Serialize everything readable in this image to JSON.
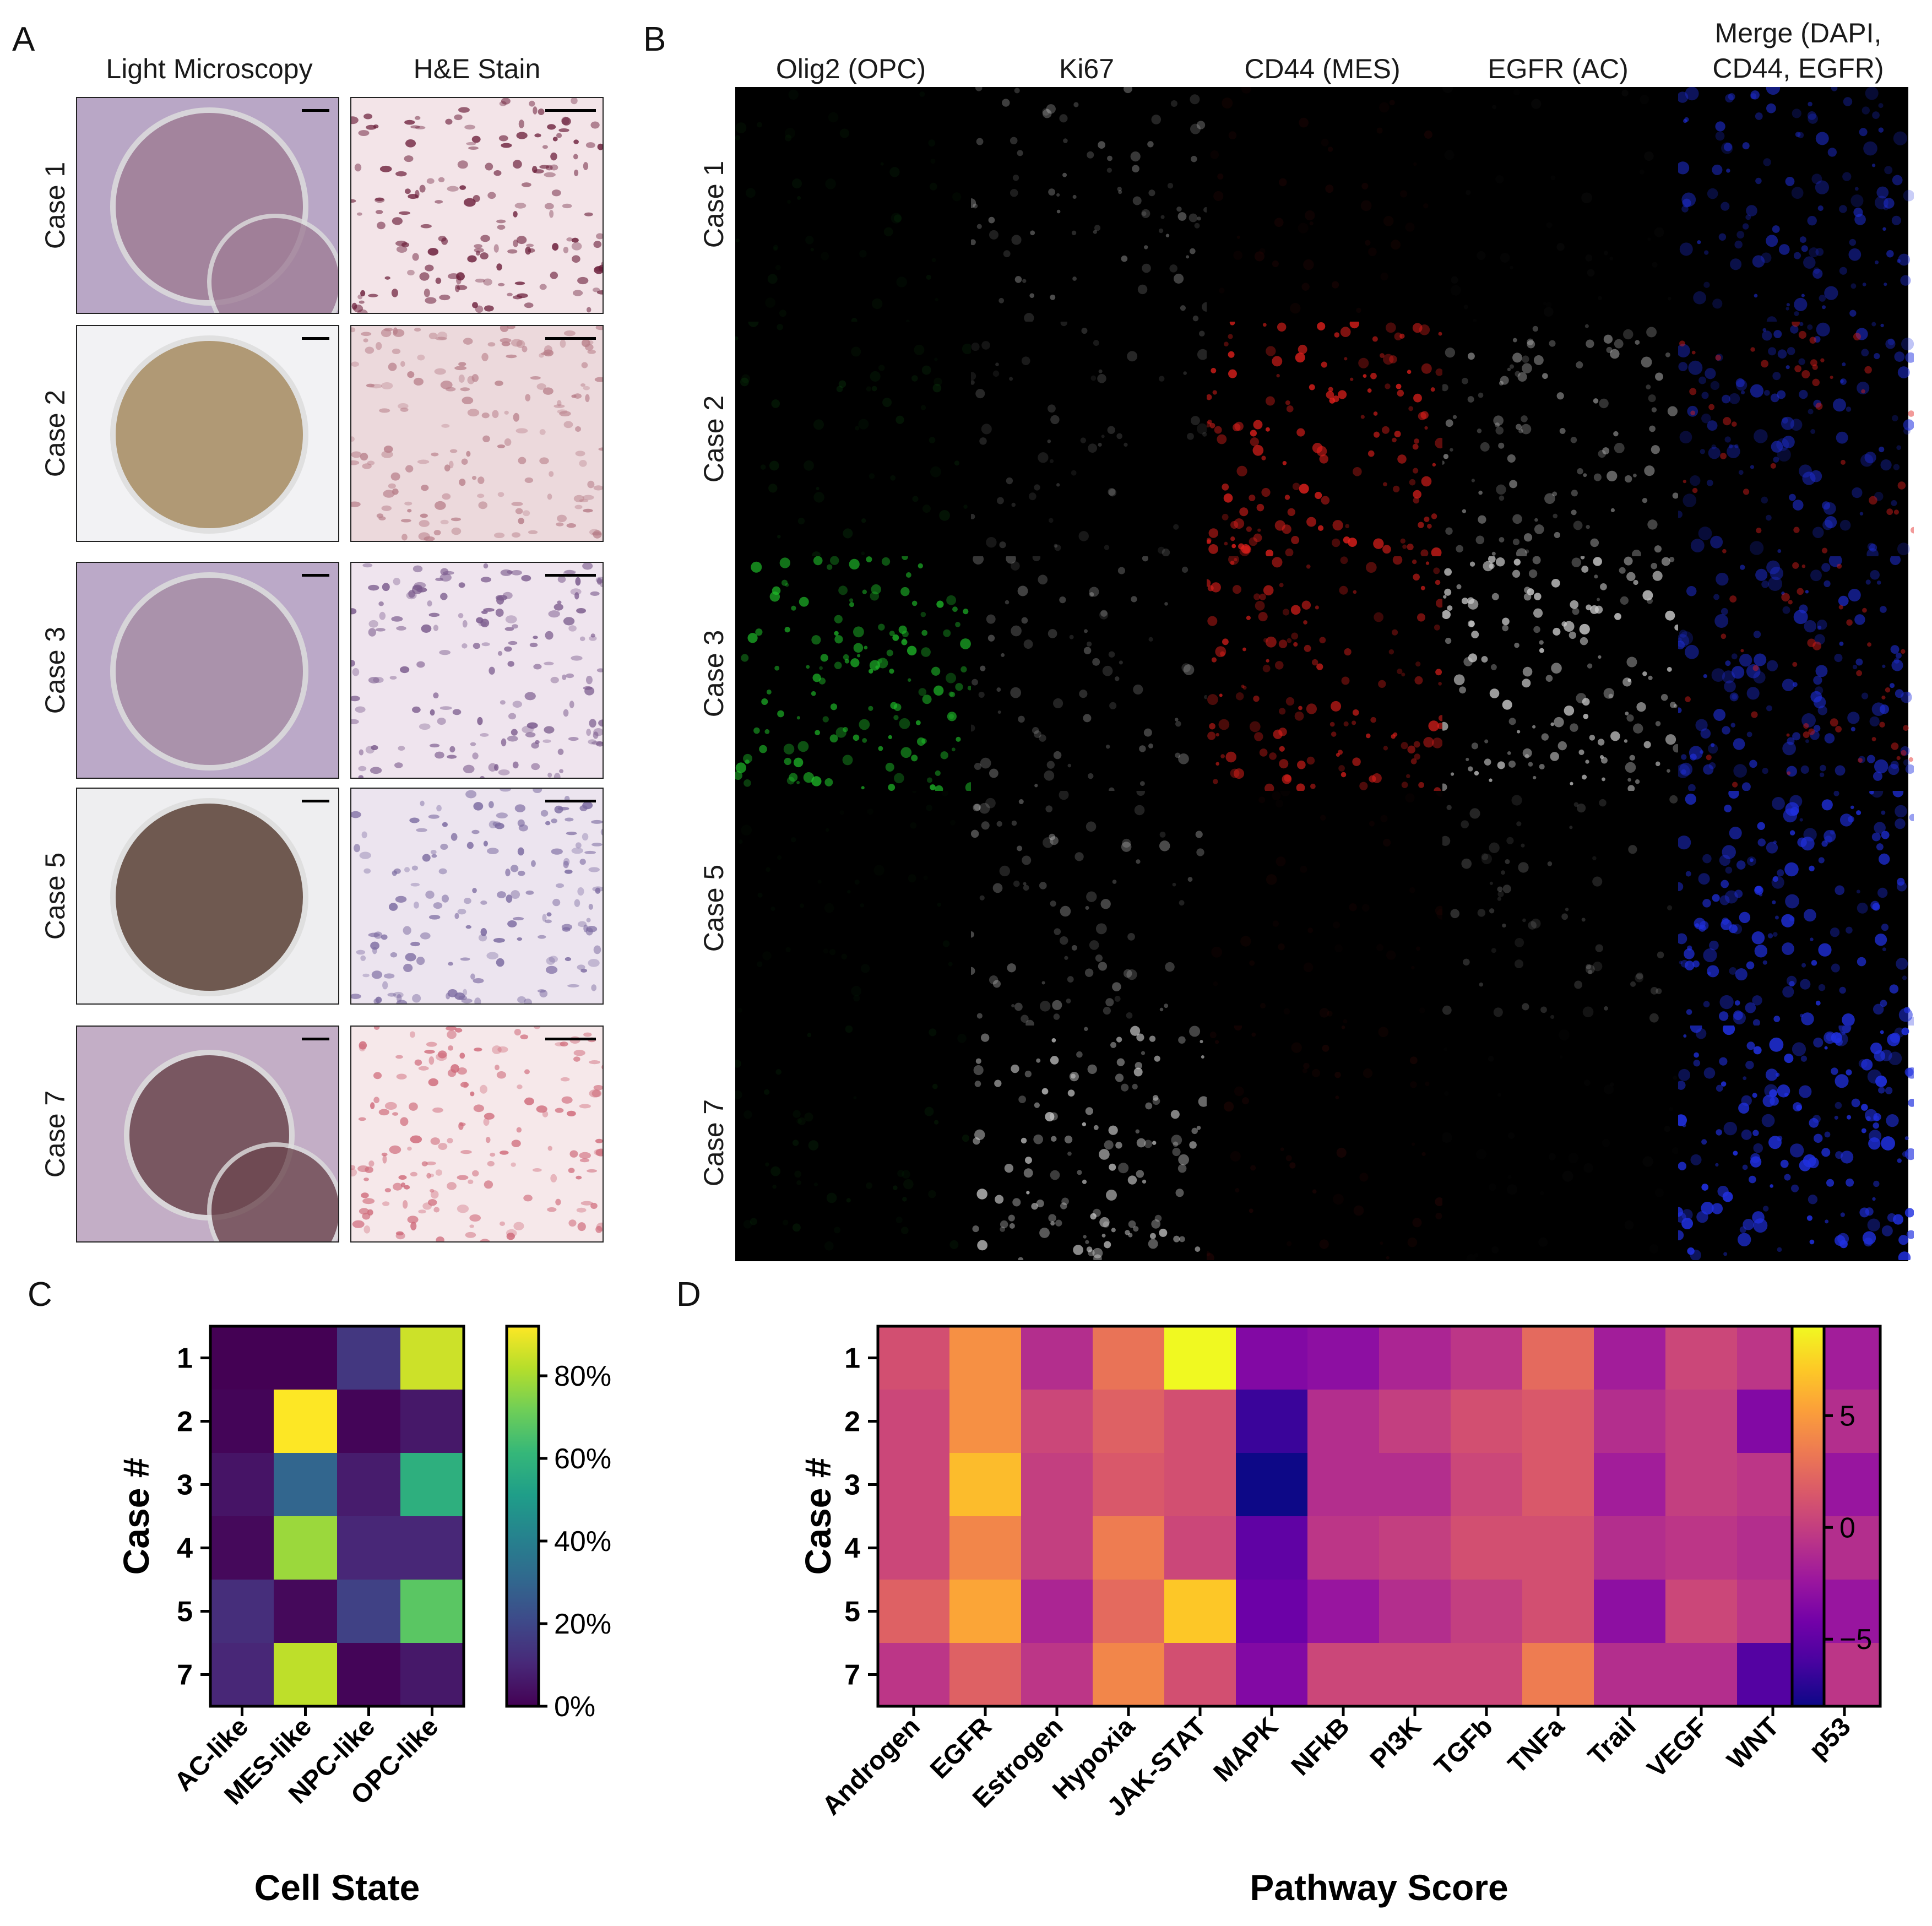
{
  "panels": {
    "A": {
      "label": "A",
      "col_headers": [
        "Light Microscopy",
        "H&E Stain"
      ],
      "rows": [
        "Case 1",
        "Case 2",
        "Case 3",
        "Case 5",
        "Case 7"
      ]
    },
    "B": {
      "label": "B",
      "col_headers": [
        "Olig2 (OPC)",
        "Ki67",
        "CD44 (MES)",
        "EGFR (AC)",
        "Merge (DAPI,\nCD44, EGFR)"
      ],
      "rows": [
        "Case 1",
        "Case 2",
        "Case 3",
        "Case 5",
        "Case 7"
      ]
    },
    "C": {
      "label": "C"
    },
    "D": {
      "label": "D"
    }
  },
  "colors": {
    "light_microscopy_bg": "#b8a6c4",
    "he_bg": "#f4e6ea",
    "if_bg": "#000000",
    "olig2": "#1fae2a",
    "cd44": "#e01a1a",
    "dapi": "#1a2cd8"
  },
  "chart_data": [
    {
      "type": "heatmap",
      "id": "cell-state",
      "title": "",
      "xlabel": "Cell State",
      "ylabel": "Case #",
      "x": [
        "AC-like",
        "MES-like",
        "NPC-like",
        "OPC-like"
      ],
      "y": [
        "1",
        "2",
        "3",
        "4",
        "5",
        "7"
      ],
      "values": [
        [
          0,
          0,
          15,
          85
        ],
        [
          1,
          92,
          1,
          6
        ],
        [
          5,
          30,
          7,
          58
        ],
        [
          2,
          78,
          10,
          10
        ],
        [
          12,
          2,
          18,
          68
        ],
        [
          10,
          83,
          1,
          6
        ]
      ],
      "colormap": "viridis",
      "vmin": 0,
      "vmax": 92,
      "colorbar_ticks": [
        0,
        20,
        40,
        60,
        80
      ],
      "colorbar_tick_labels": [
        "0%",
        "20%",
        "40%",
        "60%",
        "80%"
      ]
    },
    {
      "type": "heatmap",
      "id": "pathway-score",
      "title": "",
      "xlabel": "Pathway Score",
      "ylabel": "Case #",
      "x": [
        "Androgen",
        "EGFR",
        "Estrogen",
        "Hypoxia",
        "JAK-STAT",
        "MAPK",
        "NFkB",
        "PI3K",
        "TGFb",
        "TNFa",
        "Trail",
        "VEGF",
        "WNT",
        "p53"
      ],
      "y": [
        "1",
        "2",
        "3",
        "4",
        "5",
        "7"
      ],
      "values": [
        [
          1.0,
          4.5,
          -1.0,
          3.0,
          9.0,
          -3.5,
          -3.0,
          -1.5,
          -0.5,
          2.5,
          -2.0,
          0.5,
          -0.5,
          -2.0
        ],
        [
          0.5,
          4.5,
          0.5,
          2.0,
          1.0,
          -6.5,
          -1.0,
          0.0,
          1.0,
          1.5,
          -1.0,
          0.0,
          -3.5,
          -1.0
        ],
        [
          0.5,
          6.5,
          0.0,
          1.5,
          1.0,
          -8.0,
          -1.0,
          -1.0,
          0.5,
          1.5,
          -2.0,
          0.0,
          -0.5,
          -2.5
        ],
        [
          0.5,
          4.0,
          0.0,
          3.5,
          0.5,
          -5.0,
          -0.5,
          0.0,
          1.0,
          1.0,
          -1.0,
          -0.5,
          -1.0,
          -1.0
        ],
        [
          2.0,
          5.5,
          -1.5,
          2.5,
          7.0,
          -4.5,
          -2.5,
          -1.0,
          0.0,
          1.0,
          -3.0,
          0.5,
          -0.5,
          -2.5
        ],
        [
          -0.5,
          2.0,
          -0.5,
          4.0,
          1.0,
          -3.5,
          0.5,
          0.5,
          0.5,
          3.5,
          -1.0,
          -1.0,
          -5.5,
          -0.5
        ]
      ],
      "colormap": "plasma",
      "vmin": -8,
      "vmax": 9,
      "colorbar_ticks": [
        5,
        0,
        -5
      ],
      "colorbar_tick_labels": [
        "5",
        "0",
        "−5"
      ]
    }
  ]
}
